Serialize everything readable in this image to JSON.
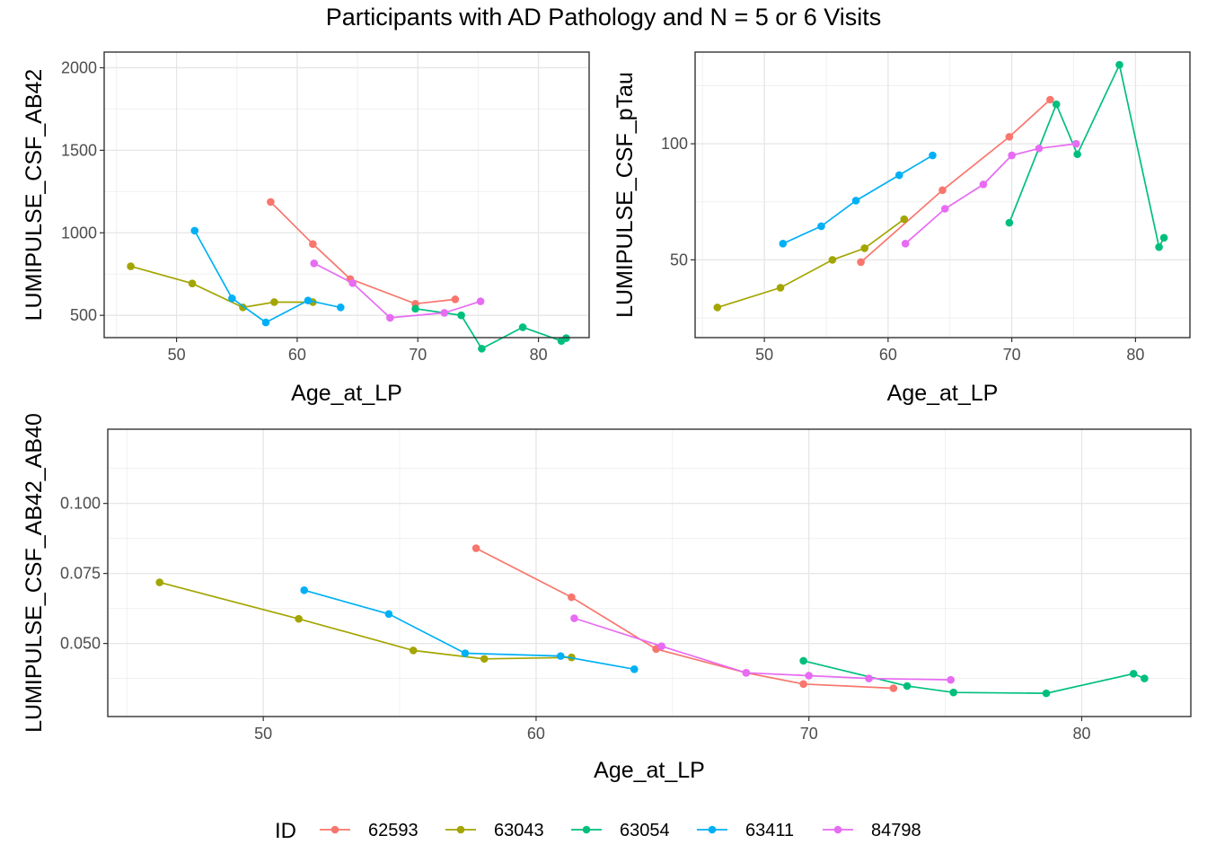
{
  "title": "Participants with AD Pathology and N = 5 or 6 Visits",
  "legend": {
    "title": "ID",
    "placement": "bottom",
    "entries": [
      {
        "name": "62593",
        "color": "#F8766D"
      },
      {
        "name": "63043",
        "color": "#A3A500"
      },
      {
        "name": "63054",
        "color": "#00BF7D"
      },
      {
        "name": "63411",
        "color": "#00B0F6"
      },
      {
        "name": "84798",
        "color": "#E76BF3"
      }
    ]
  },
  "chart_data": [
    {
      "type": "line",
      "xlabel": "Age_at_LP",
      "ylabel": "LUMIPULSE_CSF_AB42",
      "xlim": [
        44,
        84.2
      ],
      "ylim": [
        365,
        2095
      ],
      "xticks": [
        50,
        60,
        70,
        80
      ],
      "yticks": [
        500,
        1000,
        1500,
        2000
      ],
      "ytick_labels": [
        "500",
        "1000",
        "1500",
        "2000"
      ],
      "grid": true,
      "series": [
        {
          "name": "62593",
          "x": [
            57.8,
            61.3,
            64.4,
            69.8,
            73.1
          ],
          "y": [
            1187,
            932,
            720,
            570,
            597
          ]
        },
        {
          "name": "63043",
          "x": [
            46.2,
            51.3,
            55.5,
            58.1,
            61.3
          ],
          "y": [
            797,
            693,
            548,
            580,
            580
          ]
        },
        {
          "name": "63054",
          "x": [
            69.8,
            73.6,
            75.3,
            78.7,
            81.9,
            82.3
          ],
          "y": [
            540,
            500,
            298,
            428,
            345,
            362
          ]
        },
        {
          "name": "63411",
          "x": [
            51.5,
            54.6,
            57.4,
            60.9,
            63.6
          ],
          "y": [
            1013,
            603,
            457,
            590,
            548
          ]
        },
        {
          "name": "84798",
          "x": [
            61.4,
            64.6,
            67.7,
            72.2,
            75.2
          ],
          "y": [
            815,
            695,
            485,
            515,
            585
          ]
        }
      ]
    },
    {
      "type": "line",
      "xlabel": "Age_at_LP",
      "ylabel": "LUMIPULSE_CSF_pTau",
      "xlim": [
        44.4,
        84.4
      ],
      "ylim": [
        16.5,
        139.5
      ],
      "xticks": [
        50,
        60,
        70,
        80
      ],
      "yticks": [
        50,
        100
      ],
      "ytick_labels": [
        "50",
        "100"
      ],
      "grid": true,
      "series": [
        {
          "name": "62593",
          "x": [
            57.8,
            64.4,
            69.8,
            73.1
          ],
          "y": [
            49,
            80,
            103,
            119
          ]
        },
        {
          "name": "63043",
          "x": [
            46.2,
            51.3,
            55.5,
            58.1,
            61.3
          ],
          "y": [
            29.5,
            38,
            50,
            55,
            67.5
          ]
        },
        {
          "name": "63054",
          "x": [
            69.8,
            73.6,
            75.3,
            78.7,
            81.9,
            82.3
          ],
          "y": [
            66,
            117,
            95.5,
            134,
            55.5,
            59.5
          ]
        },
        {
          "name": "63411",
          "x": [
            51.5,
            54.6,
            57.4,
            60.9,
            63.6
          ],
          "y": [
            57,
            64.5,
            75.5,
            86.5,
            95
          ]
        },
        {
          "name": "84798",
          "x": [
            61.4,
            64.6,
            67.7,
            70.0,
            72.2,
            75.2
          ],
          "y": [
            57,
            72,
            82.5,
            95,
            98,
            100
          ]
        }
      ]
    },
    {
      "type": "line",
      "xlabel": "Age_at_LP",
      "ylabel": "LUMIPULSE_CSF_AB42_AB40",
      "xlim": [
        44.3,
        84.0
      ],
      "ylim": [
        0.0239,
        0.1265
      ],
      "xticks": [
        50,
        60,
        70,
        80
      ],
      "yticks": [
        0.05,
        0.075,
        0.1
      ],
      "ytick_labels": [
        "0.050",
        "0.075",
        "0.100"
      ],
      "grid": true,
      "series": [
        {
          "name": "62593",
          "x": [
            57.8,
            61.3,
            64.4,
            67.7,
            69.8,
            73.1
          ],
          "y": [
            0.084,
            0.0665,
            0.048,
            0.0395,
            0.0355,
            0.034
          ]
        },
        {
          "name": "63043",
          "x": [
            46.2,
            51.3,
            55.5,
            58.1,
            61.3
          ],
          "y": [
            0.0718,
            0.0588,
            0.0475,
            0.0445,
            0.045
          ]
        },
        {
          "name": "63054",
          "x": [
            69.8,
            73.6,
            75.3,
            78.7,
            81.9,
            82.3
          ],
          "y": [
            0.0438,
            0.0348,
            0.0325,
            0.0322,
            0.0392,
            0.0375
          ]
        },
        {
          "name": "63411",
          "x": [
            51.5,
            54.6,
            57.4,
            60.9,
            63.6
          ],
          "y": [
            0.069,
            0.0605,
            0.0465,
            0.0455,
            0.0408
          ]
        },
        {
          "name": "84798",
          "x": [
            61.4,
            64.6,
            67.7,
            70.0,
            72.2,
            75.2
          ],
          "y": [
            0.059,
            0.049,
            0.0395,
            0.0385,
            0.0375,
            0.037
          ]
        }
      ]
    }
  ]
}
